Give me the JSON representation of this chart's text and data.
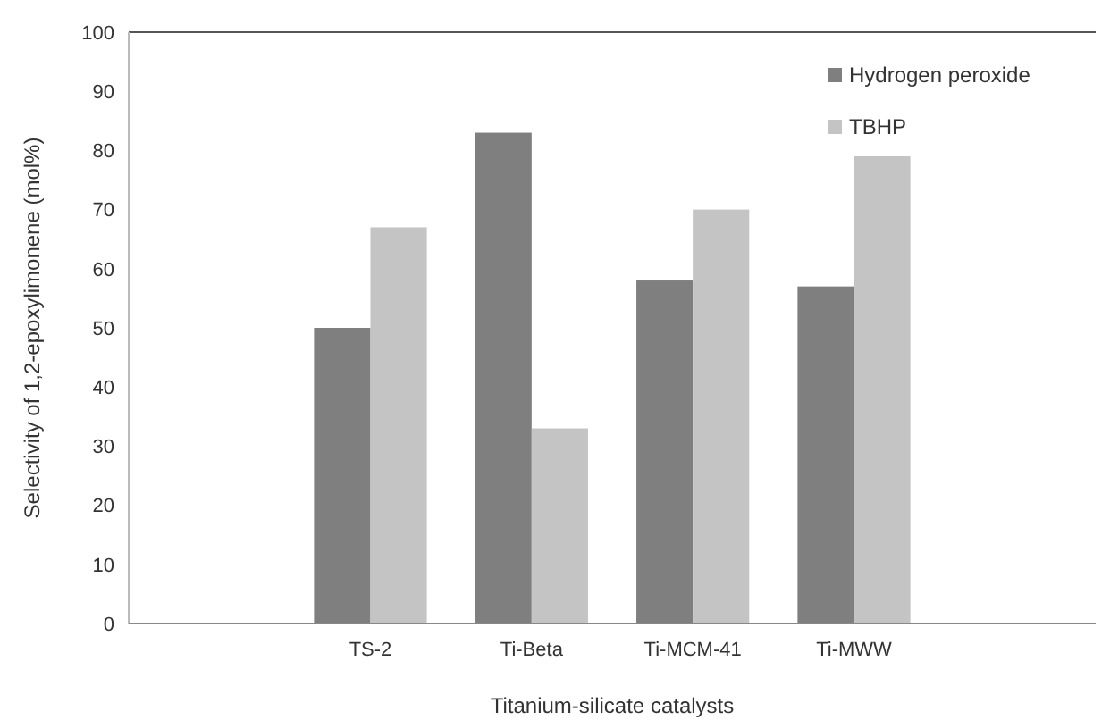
{
  "chart_data": {
    "type": "bar",
    "xlabel": "Titanium-silicate catalysts",
    "ylabel": "Selectivity of 1,2-epoxylimonene (mol%)",
    "categories": [
      null,
      "TS-2",
      "Ti-Beta",
      "Ti-MCM-41",
      "Ti-MWW",
      null
    ],
    "series": [
      {
        "name": "Hydrogen peroxide",
        "color": "#7f7f7f",
        "values": [
          null,
          50,
          83,
          58,
          57,
          null
        ]
      },
      {
        "name": "TBHP",
        "color": "#c4c4c4",
        "values": [
          null,
          67,
          33,
          70,
          79,
          null
        ]
      }
    ],
    "ylim": [
      0,
      100
    ],
    "yticks": [
      0,
      10,
      20,
      30,
      40,
      50,
      60,
      70,
      80,
      90,
      100
    ],
    "grid": false,
    "legend": "top right"
  }
}
